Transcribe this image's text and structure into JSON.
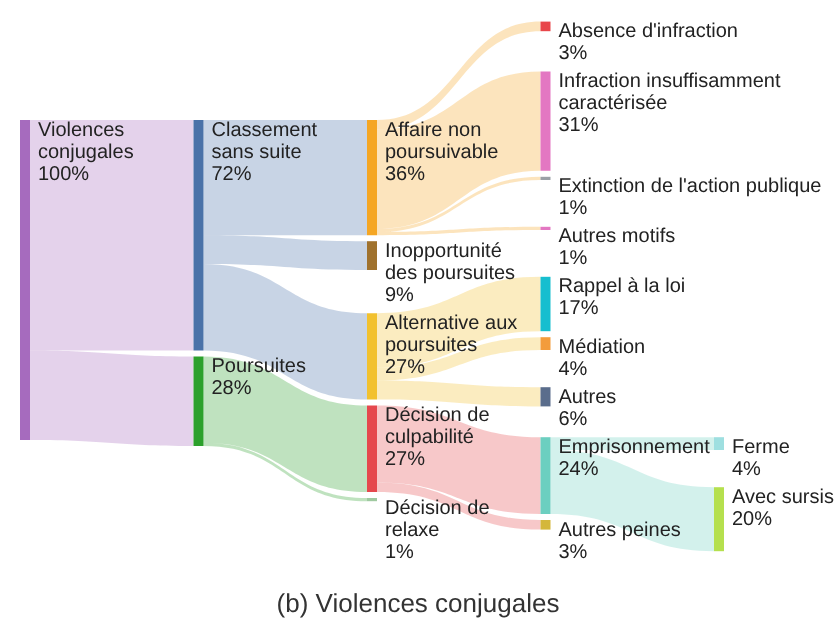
{
  "chart_data": {
    "type": "other",
    "title": "(b) Violences conjugales",
    "categories": [
      "Violences conjugales",
      "Classement sans suite",
      "Poursuites",
      "Affaire non poursuivable",
      "Inopportunité des poursuites",
      "Alternative aux poursuites",
      "Décision de culpabilité",
      "Décision de relaxe",
      "Absence d'infraction",
      "Infraction insuffisamment caractérisée",
      "Extinction de l'action publique",
      "Autres motifs",
      "Rappel à la loi",
      "Médiation",
      "Autres",
      "Emprisonnement",
      "Autres peines",
      "Ferme",
      "Avec sursis"
    ],
    "values": [
      100,
      72,
      28,
      36,
      9,
      27,
      27,
      1,
      3,
      31,
      1,
      1,
      17,
      4,
      6,
      24,
      3,
      4,
      20
    ],
    "value_labels": [
      "100%",
      "72%",
      "28%",
      "36%",
      "9%",
      "27%",
      "27%",
      "1%",
      "3%",
      "31%",
      "1%",
      "1%",
      "17%",
      "4%",
      "6%",
      "24%",
      "3%",
      "4%",
      "20%"
    ],
    "colors": [
      "#a66bbe",
      "#4a72a8",
      "#2ca02c",
      "#f5a623",
      "#a0722d",
      "#f2c12e",
      "#e5484d",
      "#9fc9a0",
      "#e8464a",
      "#e377c2",
      "#9aa0a6",
      "#e377c2",
      "#17becf",
      "#f39c3c",
      "#5a6d8c",
      "#6ccfc0",
      "#d4b73a",
      "#9edfe0",
      "#b5e04e"
    ]
  }
}
